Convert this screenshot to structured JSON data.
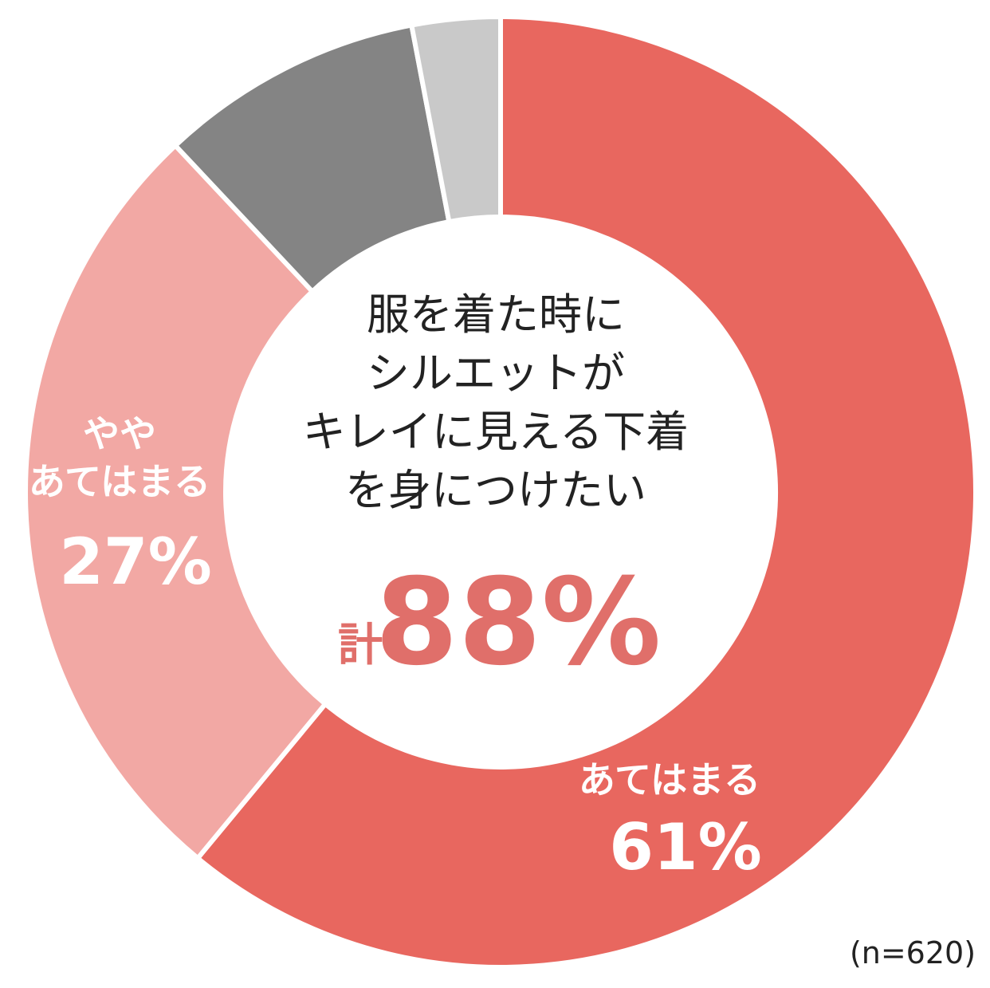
{
  "chart_data": {
    "type": "pie",
    "donut": true,
    "title": "服を着た時に\nシルエットが\nキレイに見える下着\nを身につけたい",
    "categories": [
      "あてはまる",
      "やや\nあてはまる",
      null,
      null
    ],
    "values": [
      61,
      27,
      9,
      3
    ],
    "value_labels": [
      "61%",
      "27%",
      null,
      null
    ],
    "colors": [
      "#e8675f",
      "#f2a8a4",
      "#848484",
      "#c9c9c9"
    ],
    "total_prefix": "計",
    "total": {
      "value": 88,
      "label": "88%"
    },
    "note": "(n=620)"
  }
}
